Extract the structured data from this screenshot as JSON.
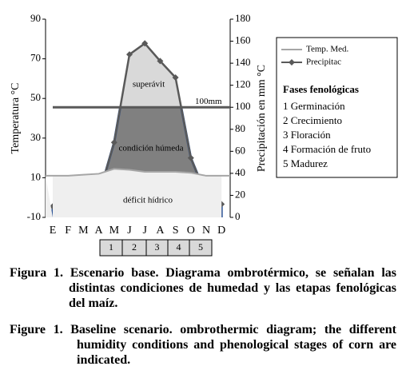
{
  "chart_data": {
    "type": "line",
    "y_label": "Temperatura °C",
    "y2_label": "Precipitación en mm °C",
    "categories": [
      "E",
      "F",
      "M",
      "A",
      "M",
      "J",
      "J",
      "A",
      "S",
      "O",
      "N",
      "D"
    ],
    "series": [
      {
        "name": "Temp. Med.",
        "color": "#a6a6a6",
        "axis": "y",
        "values": [
          11,
          11,
          11.5,
          12,
          14.5,
          14,
          13,
          13,
          13,
          12.5,
          11,
          11
        ]
      },
      {
        "name": "Precipitac",
        "color": "#595959",
        "axis": "y2",
        "values": [
          10,
          8,
          8,
          20,
          68,
          148,
          158,
          142,
          127,
          54,
          20,
          12
        ]
      }
    ],
    "ylim": [
      -10,
      90
    ],
    "yticks": [
      -10,
      10,
      30,
      50,
      70,
      90
    ],
    "y2lim": [
      0,
      180
    ],
    "y2ticks": [
      0,
      20,
      40,
      60,
      80,
      100,
      120,
      140,
      160,
      180
    ],
    "ref_line": {
      "value": 100,
      "label": "100mm"
    },
    "annotations": [
      "superávit",
      "condición húmeda",
      "déficit hídrico"
    ],
    "phases": {
      "title": "Fases fenológicas",
      "labels": [
        "1 Germinación",
        "2 Crecimiento",
        "3 Floración",
        "4 Formación de fruto",
        "5 Madurez"
      ],
      "bar": [
        "1",
        "2",
        "3",
        "4",
        "5"
      ]
    },
    "caption": [
      "Figura 1. Escenario base. Diagrama ombrotérmico, se señalan las distintas condiciones de humedad y las etapas fenológicas del maíz.",
      "Figure 1. Baseline scenario. ombrothermic diagram; the different humidity conditions and phenological stages of corn are indicated."
    ]
  }
}
